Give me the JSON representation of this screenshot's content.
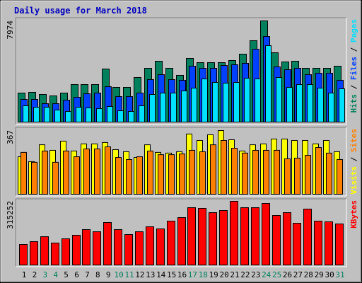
{
  "chart_data": [
    {
      "type": "bar",
      "title": "Daily usage for March 2018",
      "ylim": [
        0,
        7974
      ],
      "yticks": [
        7974
      ],
      "series": [
        {
          "name": "Hits",
          "color": "#00805c",
          "values": [
            2286,
            2342,
            2175,
            2063,
            2286,
            2955,
            2955,
            2955,
            4182,
            2732,
            2732,
            3513,
            4238,
            4796,
            4238,
            3680,
            5018,
            4684,
            4684,
            4684,
            4852,
            5353,
            6413,
            7974,
            5464,
            4740,
            4796,
            4238,
            4238,
            4238,
            4405
          ]
        },
        {
          "name": "Files",
          "color": "#0040ff",
          "values": [
            1784,
            1784,
            1450,
            1450,
            1728,
            1952,
            2230,
            2286,
            2788,
            2007,
            2007,
            2286,
            3346,
            3736,
            3346,
            3290,
            4405,
            4238,
            4238,
            4461,
            4517,
            4628,
            5743,
            6746,
            4350,
            4126,
            4238,
            3736,
            3848,
            3848,
            3290
          ]
        },
        {
          "name": "Pages",
          "color": "#00e0ff",
          "values": [
            1282,
            1171,
            1171,
            948,
            836,
            1171,
            1115,
            1059,
            1227,
            892,
            836,
            1282,
            2175,
            2286,
            2286,
            2453,
            2676,
            3401,
            3123,
            3067,
            3123,
            3457,
            3401,
            6022,
            3513,
            2732,
            2955,
            2955,
            2676,
            2286,
            2621
          ]
        }
      ]
    },
    {
      "type": "bar",
      "ylim": [
        0,
        367
      ],
      "yticks": [
        367
      ],
      "series": [
        {
          "name": "Visits",
          "color": "#ffff00",
          "values": [
            216,
            188,
            285,
            253,
            306,
            249,
            290,
            290,
            298,
            257,
            245,
            212,
            285,
            241,
            237,
            245,
            347,
            310,
            343,
            367,
            314,
            249,
            285,
            290,
            318,
            318,
            310,
            310,
            290,
            310,
            245
          ]
        },
        {
          "name": "Sites",
          "color": "#ff8000",
          "values": [
            241,
            184,
            249,
            184,
            249,
            216,
            261,
            261,
            273,
            212,
            200,
            216,
            249,
            228,
            228,
            232,
            253,
            245,
            285,
            310,
            265,
            237,
            253,
            253,
            253,
            204,
            208,
            224,
            269,
            237,
            200
          ]
        }
      ]
    },
    {
      "type": "bar",
      "ylim": [
        0,
        315252
      ],
      "yticks": [
        315252
      ],
      "categories": [
        "1",
        "2",
        "3",
        "4",
        "5",
        "6",
        "7",
        "8",
        "9",
        "10",
        "11",
        "12",
        "13",
        "14",
        "15",
        "16",
        "17",
        "18",
        "19",
        "20",
        "21",
        "22",
        "23",
        "24",
        "25",
        "26",
        "27",
        "28",
        "29",
        "30",
        "31"
      ],
      "category_colors": [
        "#000000",
        "#000000",
        "#00805c",
        "#00805c",
        "#000000",
        "#000000",
        "#000000",
        "#000000",
        "#000000",
        "#00805c",
        "#00805c",
        "#000000",
        "#000000",
        "#000000",
        "#000000",
        "#000000",
        "#00805c",
        "#00805c",
        "#000000",
        "#000000",
        "#000000",
        "#000000",
        "#000000",
        "#00805c",
        "#00805c",
        "#000000",
        "#000000",
        "#000000",
        "#000000",
        "#000000",
        "#00805c"
      ],
      "series": [
        {
          "name": "KBytes",
          "color": "#ff0000",
          "values": [
            101581,
            115592,
            140112,
            108586,
            129602,
            147117,
            175140,
            164632,
            210168,
            175140,
            150620,
            164632,
            189151,
            178642,
            217174,
            234688,
            283727,
            280224,
            259207,
            269715,
            315252,
            283727,
            283727,
            304743,
            245196,
            259207,
            206666,
            276721,
            217174,
            213671,
            203163
          ]
        }
      ]
    }
  ]
}
